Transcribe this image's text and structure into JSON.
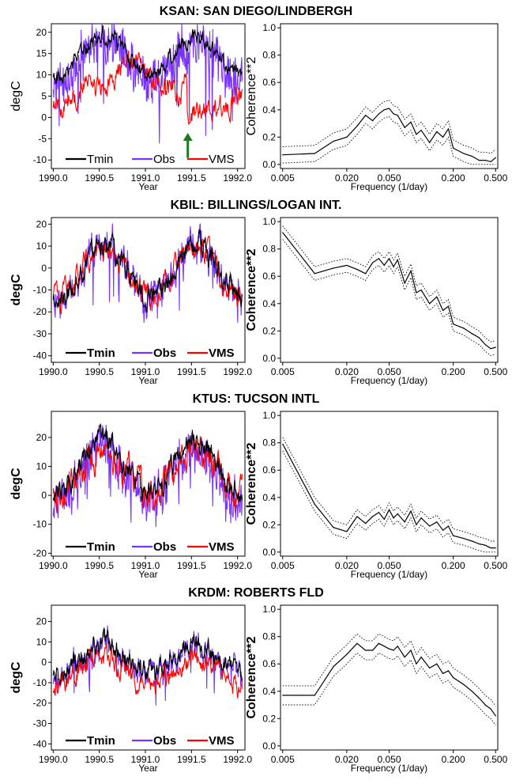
{
  "colors": {
    "tmin": "#000000",
    "obs": "#7a33ff",
    "vms": "#ff0000",
    "arrow": "#1e7a1e",
    "band": "#000000"
  },
  "panels": [
    {
      "title": "KSAN: SAN DIEGO/LINDBERGH"
    },
    {
      "title": "KBIL: BILLINGS/LOGAN INT."
    },
    {
      "title": "KTUS: TUCSON INTL"
    },
    {
      "title": "KRDM: ROBERTS FLD"
    }
  ],
  "chart_data": [
    {
      "type": "line",
      "station": "KSAN",
      "panel": "timeseries",
      "xlabel": "Year",
      "ylabel": "degC",
      "xlim": [
        1989.98,
        1992.08
      ],
      "ylim": [
        -12,
        22
      ],
      "xticks": [
        "1990.0",
        "1990.5",
        "1991.0",
        "1991.5",
        "1992.0"
      ],
      "yticks": [
        "-10",
        "-5",
        "0",
        "5",
        "10",
        "15",
        "20"
      ],
      "legend": [
        "Tmin",
        "Obs",
        "VMS"
      ],
      "legend_bold": false,
      "annotation": {
        "type": "arrow",
        "x": 1991.46,
        "y": -4
      },
      "params": {
        "amp": 4.5,
        "mean": 14.5,
        "phase": 0.55,
        "vamp": 0.5,
        "vmean": 3.5,
        "obsOff": -1.5,
        "obsNoise": 5,
        "tNoise": 1.5,
        "vNoise": 2,
        "seed": 11,
        "spikes": -14
      },
      "series": [
        {
          "name": "Tmin",
          "color": "#000000"
        },
        {
          "name": "Obs",
          "color": "#7a33ff"
        },
        {
          "name": "VMS",
          "color": "#ff0000"
        }
      ]
    },
    {
      "type": "line",
      "station": "KSAN",
      "panel": "coherence",
      "xlabel": "Frequency (1/day)",
      "ylabel": "Coherence**2",
      "log_x": true,
      "xlim": [
        0.005,
        0.5
      ],
      "ylim": [
        -0.03,
        1.03
      ],
      "xticks": [
        "0.005",
        "0.020",
        "0.050",
        "0.200",
        "0.500"
      ],
      "yticks": [
        "0.0",
        "0.2",
        "0.4",
        "0.6",
        "0.8",
        "1.0"
      ],
      "x": [
        0.005,
        0.01,
        0.015,
        0.02,
        0.025,
        0.03,
        0.035,
        0.04,
        0.045,
        0.05,
        0.055,
        0.06,
        0.07,
        0.08,
        0.09,
        0.1,
        0.12,
        0.14,
        0.16,
        0.18,
        0.2,
        0.25,
        0.3,
        0.35,
        0.4,
        0.45,
        0.5
      ],
      "y": [
        0.07,
        0.08,
        0.17,
        0.2,
        0.28,
        0.36,
        0.32,
        0.37,
        0.4,
        0.41,
        0.37,
        0.36,
        0.27,
        0.31,
        0.22,
        0.25,
        0.16,
        0.24,
        0.2,
        0.26,
        0.12,
        0.08,
        0.06,
        0.03,
        0.03,
        0.02,
        0.05
      ],
      "band": 0.06,
      "series": [
        {
          "name": "Coherence**2",
          "color": "#000000"
        }
      ]
    },
    {
      "type": "line",
      "station": "KBIL",
      "panel": "timeseries",
      "xlabel": "Year",
      "ylabel": "degC",
      "xlim": [
        1989.98,
        1992.08
      ],
      "ylim": [
        -43,
        23
      ],
      "xticks": [
        "1990.0",
        "1990.5",
        "1991.0",
        "1991.5",
        "1992.0"
      ],
      "yticks": [
        "-40",
        "-30",
        "-20",
        "-10",
        "0",
        "10",
        "20"
      ],
      "legend": [
        "Tmin",
        "Obs",
        "VMS"
      ],
      "legend_bold": true,
      "params": {
        "amp": 12,
        "mean": -1,
        "phase": 0.55,
        "vamp": 12,
        "vmean": -1,
        "obsOff": 0,
        "obsNoise": 5,
        "tNoise": 4,
        "vNoise": 4,
        "seed": 23,
        "spikes": -34
      },
      "series": [
        {
          "name": "Tmin",
          "color": "#000000"
        },
        {
          "name": "Obs",
          "color": "#7a33ff"
        },
        {
          "name": "VMS",
          "color": "#ff0000"
        }
      ]
    },
    {
      "type": "line",
      "station": "KBIL",
      "panel": "coherence",
      "xlabel": "Frequency (1/day)",
      "ylabel": "Coherence**2",
      "log_x": true,
      "xlim": [
        0.005,
        0.5
      ],
      "ylim": [
        -0.03,
        1.03
      ],
      "xticks": [
        "0.005",
        "0.020",
        "0.050",
        "0.200",
        "0.500"
      ],
      "yticks": [
        "0.0",
        "0.2",
        "0.4",
        "0.6",
        "0.8",
        "1.0"
      ],
      "x": [
        0.005,
        0.01,
        0.015,
        0.02,
        0.025,
        0.03,
        0.035,
        0.04,
        0.045,
        0.05,
        0.055,
        0.06,
        0.07,
        0.08,
        0.09,
        0.1,
        0.12,
        0.14,
        0.16,
        0.18,
        0.2,
        0.25,
        0.3,
        0.35,
        0.4,
        0.45,
        0.5
      ],
      "y": [
        0.92,
        0.62,
        0.66,
        0.68,
        0.65,
        0.62,
        0.7,
        0.73,
        0.68,
        0.73,
        0.67,
        0.72,
        0.55,
        0.64,
        0.48,
        0.5,
        0.4,
        0.45,
        0.35,
        0.38,
        0.25,
        0.22,
        0.18,
        0.15,
        0.1,
        0.07,
        0.08
      ],
      "band": 0.05,
      "series": [
        {
          "name": "Coherence**2",
          "color": "#000000"
        }
      ]
    },
    {
      "type": "line",
      "station": "KTUS",
      "panel": "timeseries",
      "xlabel": "Year",
      "ylabel": "degC",
      "xlim": [
        1989.98,
        1992.08
      ],
      "ylim": [
        -21,
        29
      ],
      "xticks": [
        "1990.0",
        "1990.5",
        "1991.0",
        "1991.5",
        "1992.0"
      ],
      "yticks": [
        "-20",
        "-10",
        "0",
        "10",
        "20"
      ],
      "legend": [
        "Tmin",
        "Obs",
        "VMS"
      ],
      "legend_bold": true,
      "params": {
        "amp": 10,
        "mean": 10,
        "phase": 0.55,
        "vamp": 7,
        "vmean": 8,
        "obsOff": -3,
        "obsNoise": 6,
        "tNoise": 3,
        "vNoise": 4,
        "seed": 37,
        "spikes": -16
      },
      "series": [
        {
          "name": "Tmin",
          "color": "#000000"
        },
        {
          "name": "Obs",
          "color": "#7a33ff"
        },
        {
          "name": "VMS",
          "color": "#ff0000"
        }
      ]
    },
    {
      "type": "line",
      "station": "KTUS",
      "panel": "coherence",
      "xlabel": "Frequency (1/day)",
      "ylabel": "Coherence**2",
      "log_x": true,
      "xlim": [
        0.005,
        0.5
      ],
      "ylim": [
        -0.03,
        1.03
      ],
      "xticks": [
        "0.005",
        "0.020",
        "0.050",
        "0.200",
        "0.500"
      ],
      "yticks": [
        "0.0",
        "0.2",
        "0.4",
        "0.6",
        "0.8",
        "1.0"
      ],
      "x": [
        0.005,
        0.01,
        0.015,
        0.02,
        0.025,
        0.03,
        0.035,
        0.04,
        0.045,
        0.05,
        0.055,
        0.06,
        0.07,
        0.08,
        0.09,
        0.1,
        0.12,
        0.14,
        0.16,
        0.18,
        0.2,
        0.25,
        0.3,
        0.35,
        0.4,
        0.45,
        0.5
      ],
      "y": [
        0.79,
        0.35,
        0.18,
        0.15,
        0.26,
        0.21,
        0.26,
        0.29,
        0.24,
        0.31,
        0.25,
        0.28,
        0.22,
        0.3,
        0.2,
        0.25,
        0.19,
        0.22,
        0.16,
        0.19,
        0.12,
        0.1,
        0.08,
        0.06,
        0.05,
        0.03,
        0.03
      ],
      "band": 0.05,
      "series": [
        {
          "name": "Coherence**2",
          "color": "#000000"
        }
      ]
    },
    {
      "type": "line",
      "station": "KRDM",
      "panel": "timeseries",
      "xlabel": "Year",
      "ylabel": "degC",
      "xlim": [
        1989.98,
        1992.08
      ],
      "ylim": [
        -43,
        28
      ],
      "xticks": [
        "1990.0",
        "1990.5",
        "1991.0",
        "1991.5",
        "1992.0"
      ],
      "yticks": [
        "-40",
        "-30",
        "-20",
        "-10",
        "0",
        "10",
        "20"
      ],
      "legend": [
        "Tmin",
        "Obs",
        "VMS"
      ],
      "legend_bold": true,
      "params": {
        "amp": 7,
        "mean": 2,
        "phase": 0.55,
        "vamp": 7,
        "vmean": -4,
        "obsOff": -1,
        "obsNoise": 4,
        "tNoise": 4,
        "vNoise": 4,
        "seed": 53,
        "spikes": -30
      },
      "series": [
        {
          "name": "Tmin",
          "color": "#000000"
        },
        {
          "name": "Obs",
          "color": "#7a33ff"
        },
        {
          "name": "VMS",
          "color": "#ff0000"
        }
      ]
    },
    {
      "type": "line",
      "station": "KRDM",
      "panel": "coherence",
      "xlabel": "Frequency (1/day)",
      "ylabel": "Coherence**2",
      "log_x": true,
      "xlim": [
        0.005,
        0.5
      ],
      "ylim": [
        -0.03,
        1.03
      ],
      "xticks": [
        "0.005",
        "0.020",
        "0.050",
        "0.200",
        "0.500"
      ],
      "yticks": [
        "0.0",
        "0.2",
        "0.4",
        "0.6",
        "0.8",
        "1.0"
      ],
      "x": [
        0.005,
        0.01,
        0.015,
        0.02,
        0.025,
        0.03,
        0.035,
        0.04,
        0.045,
        0.05,
        0.055,
        0.06,
        0.07,
        0.08,
        0.09,
        0.1,
        0.12,
        0.14,
        0.16,
        0.18,
        0.2,
        0.25,
        0.3,
        0.35,
        0.4,
        0.45,
        0.5
      ],
      "y": [
        0.37,
        0.37,
        0.58,
        0.67,
        0.75,
        0.7,
        0.7,
        0.75,
        0.73,
        0.71,
        0.7,
        0.73,
        0.65,
        0.7,
        0.6,
        0.65,
        0.57,
        0.6,
        0.53,
        0.55,
        0.5,
        0.45,
        0.4,
        0.35,
        0.3,
        0.27,
        0.22
      ],
      "band": 0.07,
      "series": [
        {
          "name": "Coherence**2",
          "color": "#000000"
        }
      ]
    }
  ]
}
